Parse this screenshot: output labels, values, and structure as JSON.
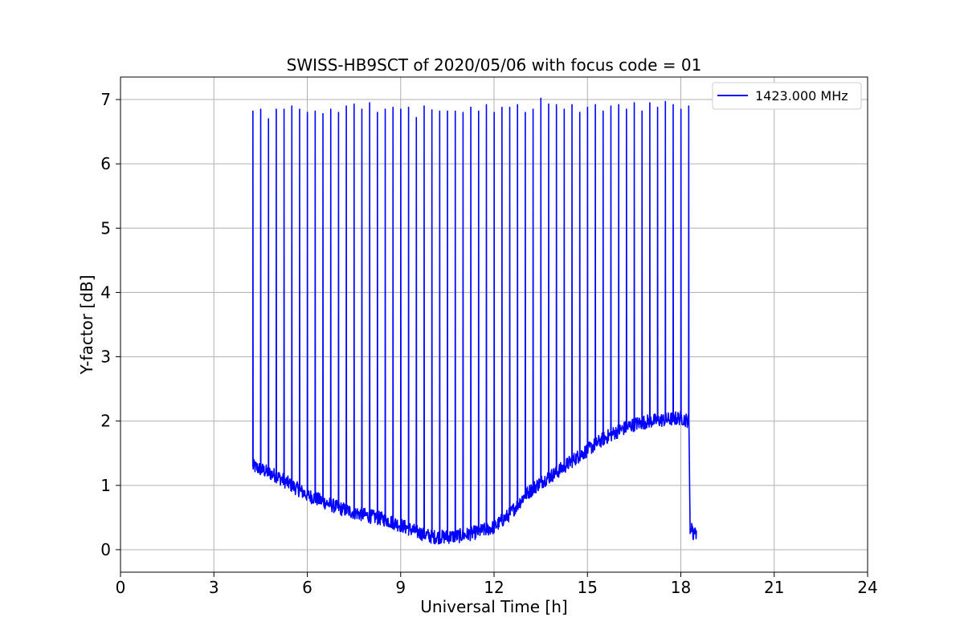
{
  "chart_data": {
    "type": "line",
    "title": "SWISS-HB9SCT of 2020/05/06 with focus code = 01",
    "xlabel": "Universal Time [h]",
    "ylabel": "Y-factor [dB]",
    "xlim": [
      0,
      24
    ],
    "ylim": [
      -0.35,
      7.35
    ],
    "xticks": [
      0,
      3,
      6,
      9,
      12,
      15,
      18,
      21,
      24
    ],
    "xtick_labels": [
      "0",
      "3",
      "6",
      "9",
      "12",
      "15",
      "18",
      "21",
      "24"
    ],
    "yticks": [
      0,
      1,
      2,
      3,
      4,
      5,
      6,
      7
    ],
    "ytick_labels": [
      "0",
      "1",
      "2",
      "3",
      "4",
      "5",
      "6",
      "7"
    ],
    "grid": true,
    "legend_position": "top-right",
    "series": [
      {
        "name": "1423.000 MHz",
        "color": "#0000ff",
        "baseline": {
          "x": [
            4.25,
            4.5,
            5.0,
            5.5,
            6.0,
            6.5,
            7.0,
            7.5,
            8.0,
            8.5,
            9.0,
            9.5,
            10.0,
            10.5,
            11.0,
            11.5,
            12.0,
            12.5,
            13.0,
            13.5,
            14.0,
            14.5,
            15.0,
            15.5,
            16.0,
            16.5,
            17.0,
            17.5,
            18.0,
            18.25
          ],
          "y": [
            1.3,
            1.25,
            1.15,
            1.0,
            0.85,
            0.75,
            0.65,
            0.58,
            0.52,
            0.47,
            0.38,
            0.28,
            0.2,
            0.2,
            0.22,
            0.28,
            0.35,
            0.55,
            0.85,
            1.05,
            1.2,
            1.38,
            1.55,
            1.72,
            1.85,
            1.95,
            2.0,
            2.02,
            2.05,
            2.0
          ]
        },
        "peaks": {
          "x": [
            4.25,
            4.5,
            4.75,
            5.0,
            5.25,
            5.5,
            5.75,
            6.0,
            6.25,
            6.5,
            6.75,
            7.0,
            7.25,
            7.5,
            7.75,
            8.0,
            8.25,
            8.5,
            8.75,
            9.0,
            9.25,
            9.5,
            9.75,
            10.0,
            10.25,
            10.5,
            10.75,
            11.0,
            11.25,
            11.5,
            11.75,
            12.0,
            12.25,
            12.5,
            12.75,
            13.0,
            13.25,
            13.5,
            13.75,
            14.0,
            14.25,
            14.5,
            14.75,
            15.0,
            15.25,
            15.5,
            15.75,
            16.0,
            16.25,
            16.5,
            16.75,
            17.0,
            17.25,
            17.5,
            17.75,
            18.0,
            18.25
          ],
          "y": [
            6.82,
            6.85,
            6.7,
            6.85,
            6.85,
            6.9,
            6.85,
            6.8,
            6.82,
            6.78,
            6.85,
            6.8,
            6.9,
            6.93,
            6.85,
            6.95,
            6.8,
            6.85,
            6.88,
            6.85,
            6.88,
            6.72,
            6.9,
            6.84,
            6.82,
            6.82,
            6.82,
            6.8,
            6.88,
            6.82,
            6.92,
            6.8,
            6.88,
            6.88,
            6.92,
            6.8,
            6.85,
            7.02,
            6.93,
            6.92,
            6.85,
            6.92,
            6.8,
            6.88,
            6.92,
            6.82,
            6.9,
            6.92,
            6.85,
            6.95,
            6.82,
            6.95,
            6.88,
            6.97,
            6.92,
            6.85,
            6.9
          ]
        },
        "tail": {
          "x": [
            18.3,
            18.35,
            18.4,
            18.45,
            18.5
          ],
          "y": [
            0.25,
            0.4,
            0.2,
            0.35,
            0.22
          ]
        }
      }
    ]
  }
}
